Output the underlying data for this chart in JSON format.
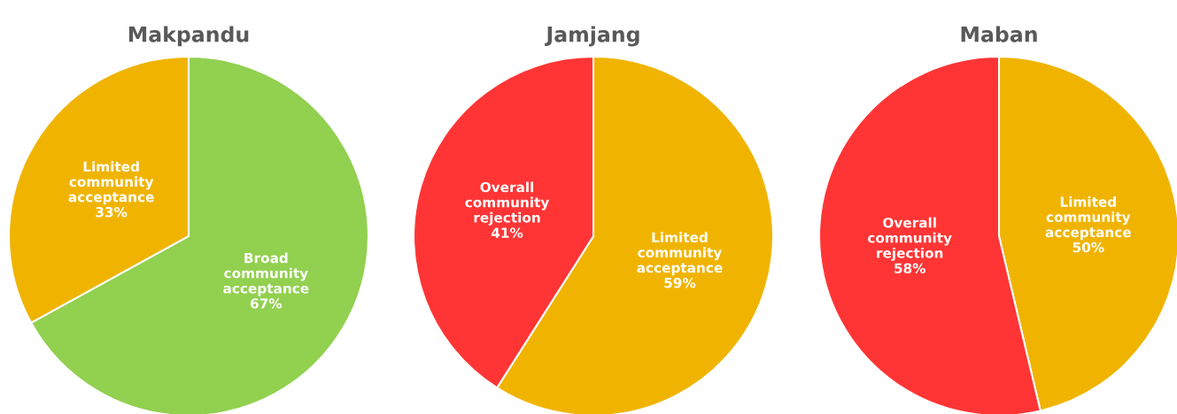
{
  "chart_data": [
    {
      "type": "pie",
      "title": "Makpandu",
      "categories": [
        "Broad\ncommunity\nacceptance",
        "Limited\ncommunity\nacceptance"
      ],
      "values": [
        67,
        33
      ],
      "value_labels": [
        "67%",
        "33%"
      ],
      "colors": [
        "#92d050",
        "#f0b400"
      ]
    },
    {
      "type": "pie",
      "title": "Jamjang",
      "categories": [
        "Limited\ncommunity\nacceptance",
        "Overall\ncommunity\nrejection"
      ],
      "values": [
        59,
        41
      ],
      "value_labels": [
        "59%",
        "41%"
      ],
      "colors": [
        "#f0b400",
        "#ff3535"
      ]
    },
    {
      "type": "pie",
      "title": "Maban",
      "categories": [
        "Limited\ncommunity\nacceptance",
        "Overall\ncommunity\nrejection"
      ],
      "values": [
        50,
        58
      ],
      "value_labels": [
        "50%",
        "58%"
      ],
      "colors": [
        "#f0b400",
        "#ff3535"
      ]
    }
  ]
}
